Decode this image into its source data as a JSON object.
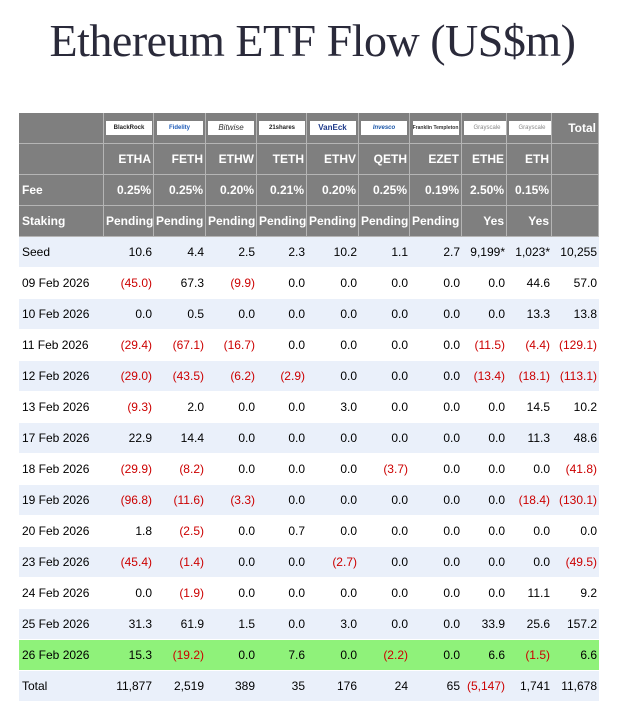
{
  "title": "Ethereum ETF Flow (US$m)",
  "chart_data": {
    "type": "table",
    "issuer_logos": [
      "BlackRock",
      "Fidelity",
      "Bitwise",
      "21shares",
      "VanEck",
      "Invesco",
      "Franklin Templeton",
      "Grayscale",
      "Grayscale"
    ],
    "total_header": "Total",
    "tickers": [
      "ETHA",
      "FETH",
      "ETHW",
      "TETH",
      "ETHV",
      "QETH",
      "EZET",
      "ETHE",
      "ETH"
    ],
    "fee_label": "Fee",
    "fees": [
      "0.25%",
      "0.25%",
      "0.20%",
      "0.21%",
      "0.20%",
      "0.25%",
      "0.19%",
      "2.50%",
      "0.15%"
    ],
    "staking_label": "Staking",
    "staking": [
      "Pending",
      "Pending",
      "Pending",
      "Pending",
      "Pending",
      "Pending",
      "Pending",
      "Yes",
      "Yes"
    ],
    "rows": [
      {
        "label": "Seed",
        "values": [
          "10.6",
          "4.4",
          "2.5",
          "2.3",
          "10.2",
          "1.1",
          "2.7",
          "9,199*",
          "1,023*"
        ],
        "total": "10,255"
      },
      {
        "label": "09 Feb 2026",
        "values": [
          "(45.0)",
          "67.3",
          "(9.9)",
          "0.0",
          "0.0",
          "0.0",
          "0.0",
          "0.0",
          "44.6"
        ],
        "total": "57.0"
      },
      {
        "label": "10 Feb 2026",
        "values": [
          "0.0",
          "0.5",
          "0.0",
          "0.0",
          "0.0",
          "0.0",
          "0.0",
          "0.0",
          "13.3"
        ],
        "total": "13.8"
      },
      {
        "label": "11 Feb 2026",
        "values": [
          "(29.4)",
          "(67.1)",
          "(16.7)",
          "0.0",
          "0.0",
          "0.0",
          "0.0",
          "(11.5)",
          "(4.4)"
        ],
        "total": "(129.1)"
      },
      {
        "label": "12 Feb 2026",
        "values": [
          "(29.0)",
          "(43.5)",
          "(6.2)",
          "(2.9)",
          "0.0",
          "0.0",
          "0.0",
          "(13.4)",
          "(18.1)"
        ],
        "total": "(113.1)"
      },
      {
        "label": "13 Feb 2026",
        "values": [
          "(9.3)",
          "2.0",
          "0.0",
          "0.0",
          "3.0",
          "0.0",
          "0.0",
          "0.0",
          "14.5"
        ],
        "total": "10.2"
      },
      {
        "label": "17 Feb 2026",
        "values": [
          "22.9",
          "14.4",
          "0.0",
          "0.0",
          "0.0",
          "0.0",
          "0.0",
          "0.0",
          "11.3"
        ],
        "total": "48.6"
      },
      {
        "label": "18 Feb 2026",
        "values": [
          "(29.9)",
          "(8.2)",
          "0.0",
          "0.0",
          "0.0",
          "(3.7)",
          "0.0",
          "0.0",
          "0.0"
        ],
        "total": "(41.8)"
      },
      {
        "label": "19 Feb 2026",
        "values": [
          "(96.8)",
          "(11.6)",
          "(3.3)",
          "0.0",
          "0.0",
          "0.0",
          "0.0",
          "0.0",
          "(18.4)"
        ],
        "total": "(130.1)"
      },
      {
        "label": "20 Feb 2026",
        "values": [
          "1.8",
          "(2.5)",
          "0.0",
          "0.7",
          "0.0",
          "0.0",
          "0.0",
          "0.0",
          "0.0"
        ],
        "total": "0.0"
      },
      {
        "label": "23 Feb 2026",
        "values": [
          "(45.4)",
          "(1.4)",
          "0.0",
          "0.0",
          "(2.7)",
          "0.0",
          "0.0",
          "0.0",
          "0.0"
        ],
        "total": "(49.5)"
      },
      {
        "label": "24 Feb 2026",
        "values": [
          "0.0",
          "(1.9)",
          "0.0",
          "0.0",
          "0.0",
          "0.0",
          "0.0",
          "0.0",
          "11.1"
        ],
        "total": "9.2"
      },
      {
        "label": "25 Feb 2026",
        "values": [
          "31.3",
          "61.9",
          "1.5",
          "0.0",
          "3.0",
          "0.0",
          "0.0",
          "33.9",
          "25.6"
        ],
        "total": "157.2"
      },
      {
        "label": "26 Feb 2026",
        "values": [
          "15.3",
          "(19.2)",
          "0.0",
          "7.6",
          "0.0",
          "(2.2)",
          "0.0",
          "6.6",
          "(1.5)"
        ],
        "total": "6.6",
        "highlight": true
      }
    ],
    "total_row": {
      "label": "Total",
      "values": [
        "11,877",
        "2,519",
        "389",
        "35",
        "176",
        "24",
        "65",
        "(5,147)",
        "1,741"
      ],
      "total": "11,678"
    },
    "colors": {
      "header_bg": "#7f7f7f",
      "row_alt": "#eaf0fa",
      "highlight": "#8ff27a",
      "negative": "#cc0000"
    }
  }
}
